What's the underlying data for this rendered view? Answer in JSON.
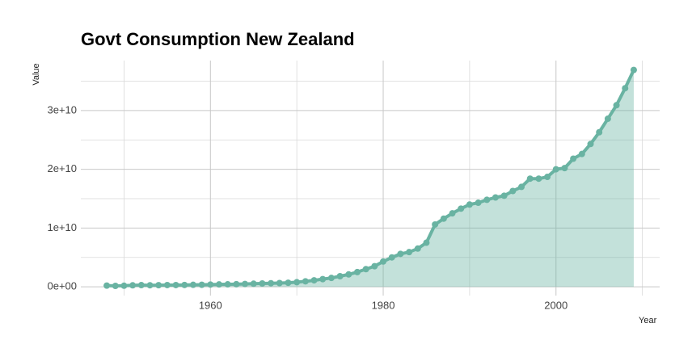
{
  "chart_data": {
    "type": "area",
    "title": "Govt Consumption New Zealand",
    "xlabel": "Year",
    "ylabel": "Value",
    "color": "#69b3a2",
    "fill_opacity": 0.4,
    "grid": true,
    "x": [
      1948,
      1949,
      1950,
      1951,
      1952,
      1953,
      1954,
      1955,
      1956,
      1957,
      1958,
      1959,
      1960,
      1961,
      1962,
      1963,
      1964,
      1965,
      1966,
      1967,
      1968,
      1969,
      1970,
      1971,
      1972,
      1973,
      1974,
      1975,
      1976,
      1977,
      1978,
      1979,
      1980,
      1981,
      1982,
      1983,
      1984,
      1985,
      1986,
      1987,
      1988,
      1989,
      1990,
      1991,
      1992,
      1993,
      1994,
      1995,
      1996,
      1997,
      1998,
      1999,
      2000,
      2001,
      2002,
      2003,
      2004,
      2005,
      2006,
      2007,
      2008,
      2009
    ],
    "values": [
      200000000,
      150000000,
      180000000,
      250000000,
      280000000,
      260000000,
      270000000,
      290000000,
      290000000,
      310000000,
      330000000,
      340000000,
      380000000,
      400000000,
      420000000,
      440000000,
      480000000,
      520000000,
      560000000,
      600000000,
      630000000,
      680000000,
      780000000,
      930000000,
      1100000000,
      1300000000,
      1500000000,
      1800000000,
      2100000000,
      2500000000,
      3000000000,
      3500000000,
      4300000000,
      5000000000,
      5600000000,
      5900000000,
      6500000000,
      7500000000,
      10600000000,
      11600000000,
      12500000000,
      13300000000,
      14000000000,
      14300000000,
      14800000000,
      15200000000,
      15500000000,
      16300000000,
      17000000000,
      18400000000,
      18400000000,
      18700000000,
      20000000000,
      20200000000,
      21800000000,
      22600000000,
      24300000000,
      26300000000,
      28600000000,
      30900000000,
      33800000000,
      36900000000
    ],
    "xlim": [
      1945,
      2012
    ],
    "xticks": [
      1960,
      1980,
      2000
    ],
    "xminor": [
      1950,
      1970,
      1990,
      2010
    ],
    "ylim": [
      -1500000000,
      38500000000
    ],
    "yticks": [
      {
        "value": 0,
        "label": "0e+00"
      },
      {
        "value": 10000000000,
        "label": "1e+10"
      },
      {
        "value": 20000000000,
        "label": "2e+10"
      },
      {
        "value": 30000000000,
        "label": "3e+10"
      }
    ],
    "yminor": [
      5000000000,
      15000000000,
      25000000000,
      35000000000
    ]
  }
}
